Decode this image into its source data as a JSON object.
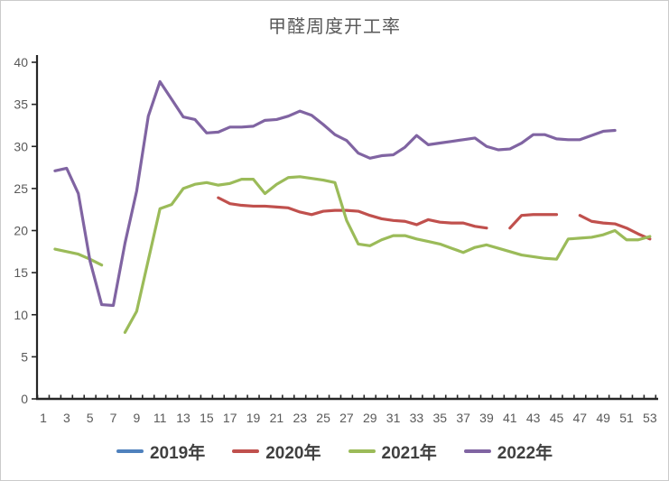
{
  "chart_data": {
    "type": "line",
    "title": "甲醛周度开工率",
    "xlabel": "",
    "ylabel": "",
    "ylim": [
      0,
      40
    ],
    "y_ticks": [
      0,
      5,
      10,
      15,
      20,
      25,
      30,
      35,
      40
    ],
    "x_tick_weeks": [
      1,
      3,
      5,
      7,
      9,
      11,
      13,
      15,
      17,
      19,
      21,
      23,
      25,
      27,
      29,
      31,
      33,
      35,
      37,
      39,
      41,
      43,
      45,
      47,
      49,
      51,
      53
    ],
    "x": [
      1,
      2,
      3,
      4,
      5,
      6,
      7,
      8,
      9,
      10,
      11,
      12,
      13,
      14,
      15,
      16,
      17,
      18,
      19,
      20,
      21,
      22,
      23,
      24,
      25,
      26,
      27,
      28,
      29,
      30,
      31,
      32,
      33,
      34,
      35,
      36,
      37,
      38,
      39,
      40,
      41,
      42,
      43,
      44,
      45,
      46,
      47,
      48,
      49,
      50,
      51,
      52,
      53
    ],
    "grid": false,
    "legend_position": "bottom",
    "axis_color": "#262626",
    "tick_label_color": "#595959",
    "title_color": "#595959",
    "legend_text_color": "#404040",
    "series": [
      {
        "name": "2019年",
        "color": "#4F81BD",
        "values": [
          null,
          null,
          null,
          null,
          null,
          null,
          null,
          null,
          null,
          null,
          null,
          null,
          null,
          null,
          null,
          null,
          null,
          null,
          null,
          null,
          null,
          null,
          null,
          null,
          null,
          null,
          null,
          null,
          null,
          null,
          null,
          null,
          null,
          null,
          null,
          null,
          null,
          null,
          null,
          null,
          null,
          null,
          null,
          null,
          null,
          null,
          null,
          null,
          null,
          null,
          null,
          null,
          null
        ]
      },
      {
        "name": "2020年",
        "color": "#C0504D",
        "values": [
          null,
          null,
          null,
          null,
          null,
          null,
          null,
          null,
          null,
          null,
          null,
          null,
          null,
          null,
          null,
          23.9,
          23.2,
          23.0,
          22.9,
          22.9,
          22.8,
          22.7,
          22.2,
          21.9,
          22.3,
          22.4,
          22.4,
          22.3,
          21.8,
          21.4,
          21.2,
          21.1,
          20.7,
          21.3,
          21.0,
          20.9,
          20.9,
          20.5,
          20.3,
          null,
          20.3,
          21.8,
          21.9,
          21.9,
          21.9,
          null,
          21.8,
          21.1,
          20.9,
          20.8,
          20.3,
          19.6,
          19.0
        ]
      },
      {
        "name": "2021年",
        "color": "#9BBB59",
        "values": [
          null,
          17.8,
          17.5,
          17.2,
          16.6,
          15.9,
          null,
          7.9,
          10.4,
          16.5,
          22.6,
          23.1,
          25.0,
          25.5,
          25.7,
          25.4,
          25.6,
          26.1,
          26.1,
          24.4,
          25.5,
          26.3,
          26.4,
          26.2,
          26.0,
          25.7,
          21.2,
          18.4,
          18.2,
          18.9,
          19.4,
          19.4,
          19.0,
          18.7,
          18.4,
          17.9,
          17.4,
          18.0,
          18.3,
          17.9,
          17.5,
          17.1,
          16.9,
          16.7,
          16.6,
          19.0,
          19.1,
          19.2,
          19.5,
          20.0,
          18.9,
          18.9,
          19.3
        ]
      },
      {
        "name": "2022年",
        "color": "#8064A2",
        "values": [
          null,
          27.1,
          27.4,
          24.4,
          16.4,
          11.2,
          11.1,
          18.5,
          24.7,
          33.6,
          37.7,
          35.6,
          33.5,
          33.2,
          31.6,
          31.7,
          32.3,
          32.3,
          32.4,
          33.1,
          33.2,
          33.6,
          34.2,
          33.7,
          32.6,
          31.4,
          30.7,
          29.2,
          28.6,
          28.9,
          29.0,
          29.9,
          31.3,
          30.2,
          30.4,
          30.6,
          30.8,
          31.0,
          30.0,
          29.6,
          29.7,
          30.4,
          31.4,
          31.4,
          30.9,
          30.8,
          30.8,
          31.3,
          31.8,
          31.9,
          null,
          null,
          null
        ]
      }
    ]
  }
}
